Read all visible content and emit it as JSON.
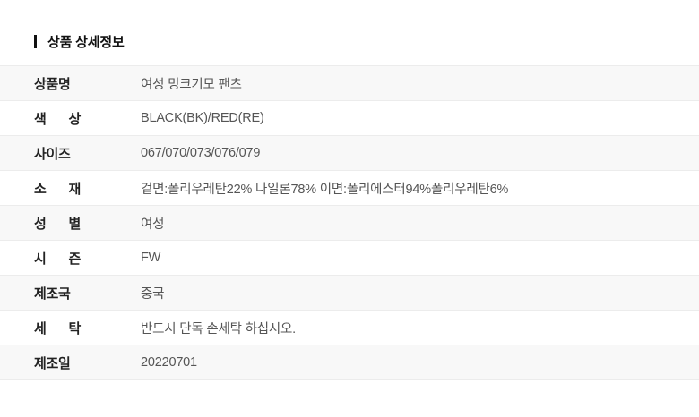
{
  "header": {
    "title": "상품 상세정보"
  },
  "table": {
    "rows": [
      {
        "label": "상품명",
        "value": "여성 밍크기모 팬츠"
      },
      {
        "label": "색 상",
        "value": "BLACK(BK)/RED(RE)"
      },
      {
        "label": "사이즈",
        "value": "067/070/073/076/079"
      },
      {
        "label": "소 재",
        "value": "겉면:폴리우레탄22% 나일론78% 이면:폴리에스터94%폴리우레탄6%"
      },
      {
        "label": "성 별",
        "value": "여성"
      },
      {
        "label": "시 즌",
        "value": "FW"
      },
      {
        "label": "제조국",
        "value": "중국"
      },
      {
        "label": "세 탁",
        "value": "반드시 단독 손세탁 하십시오."
      },
      {
        "label": "제조일",
        "value": "20220701"
      }
    ]
  },
  "colors": {
    "accent_bar": "#111111",
    "row_alt_bg": "#f8f8f8",
    "divider": "#ececec",
    "label_text": "#222222",
    "value_text": "#555555"
  }
}
